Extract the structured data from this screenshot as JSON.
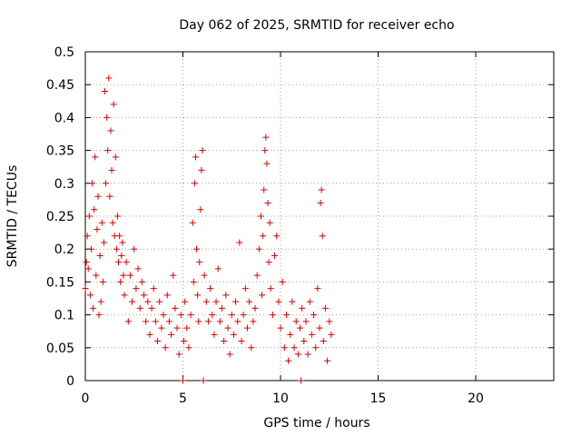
{
  "chart_data": {
    "type": "scatter",
    "title": "Day 062 of 2025, SRMTID for receiver echo",
    "xlabel": "GPS time / hours",
    "ylabel": "SRMTID / TECUs",
    "xlim": [
      0,
      24
    ],
    "ylim": [
      0,
      0.5
    ],
    "xticks": [
      0,
      5,
      10,
      15,
      20
    ],
    "xtick_labels": [
      "0",
      "5",
      "10",
      "15",
      "20"
    ],
    "yticks": [
      0,
      0.05,
      0.1,
      0.15,
      0.2,
      0.25,
      0.3,
      0.35,
      0.4,
      0.45,
      0.5
    ],
    "ytick_labels": [
      "0",
      "0.05",
      "0.1",
      "0.15",
      "0.2",
      "0.25",
      "0.3",
      "0.35",
      "0.4",
      "0.45",
      "0.5"
    ],
    "grid": true,
    "marker": "+",
    "colors": {
      "marker": "#dd0000",
      "grid": "#a0a0a0",
      "axis": "#000000"
    },
    "series": [
      {
        "name": "SRMTID",
        "points": [
          [
            0.0,
            0.14
          ],
          [
            0.05,
            0.18
          ],
          [
            0.1,
            0.22
          ],
          [
            0.15,
            0.17
          ],
          [
            0.2,
            0.25
          ],
          [
            0.25,
            0.13
          ],
          [
            0.3,
            0.2
          ],
          [
            0.35,
            0.3
          ],
          [
            0.4,
            0.11
          ],
          [
            0.45,
            0.26
          ],
          [
            0.5,
            0.34
          ],
          [
            0.55,
            0.16
          ],
          [
            0.6,
            0.23
          ],
          [
            0.65,
            0.28
          ],
          [
            0.7,
            0.1
          ],
          [
            0.75,
            0.19
          ],
          [
            0.8,
            0.12
          ],
          [
            0.85,
            0.24
          ],
          [
            0.9,
            0.15
          ],
          [
            0.95,
            0.21
          ],
          [
            1.0,
            0.44
          ],
          [
            1.05,
            0.3
          ],
          [
            1.1,
            0.4
          ],
          [
            1.15,
            0.35
          ],
          [
            1.2,
            0.46
          ],
          [
            1.25,
            0.28
          ],
          [
            1.3,
            0.38
          ],
          [
            1.35,
            0.32
          ],
          [
            1.4,
            0.24
          ],
          [
            1.45,
            0.42
          ],
          [
            1.5,
            0.22
          ],
          [
            1.55,
            0.34
          ],
          [
            1.6,
            0.2
          ],
          [
            1.65,
            0.25
          ],
          [
            1.7,
            0.18
          ],
          [
            1.75,
            0.22
          ],
          [
            1.8,
            0.15
          ],
          [
            1.85,
            0.19
          ],
          [
            1.9,
            0.21
          ],
          [
            1.95,
            0.16
          ],
          [
            2.0,
            0.13
          ],
          [
            2.1,
            0.18
          ],
          [
            2.2,
            0.09
          ],
          [
            2.3,
            0.16
          ],
          [
            2.4,
            0.12
          ],
          [
            2.5,
            0.2
          ],
          [
            2.6,
            0.14
          ],
          [
            2.7,
            0.17
          ],
          [
            2.8,
            0.11
          ],
          [
            2.9,
            0.15
          ],
          [
            3.0,
            0.13
          ],
          [
            3.1,
            0.09
          ],
          [
            3.2,
            0.12
          ],
          [
            3.3,
            0.07
          ],
          [
            3.4,
            0.11
          ],
          [
            3.5,
            0.14
          ],
          [
            3.6,
            0.09
          ],
          [
            3.7,
            0.06
          ],
          [
            3.8,
            0.12
          ],
          [
            3.9,
            0.08
          ],
          [
            4.0,
            0.1
          ],
          [
            4.1,
            0.05
          ],
          [
            4.2,
            0.13
          ],
          [
            4.3,
            0.09
          ],
          [
            4.4,
            0.07
          ],
          [
            4.5,
            0.16
          ],
          [
            4.6,
            0.11
          ],
          [
            4.7,
            0.08
          ],
          [
            4.8,
            0.04
          ],
          [
            4.9,
            0.1
          ],
          [
            5.0,
            0.0
          ],
          [
            5.05,
            0.06
          ],
          [
            5.1,
            0.12
          ],
          [
            5.2,
            0.08
          ],
          [
            5.3,
            0.05
          ],
          [
            5.4,
            0.1
          ],
          [
            5.5,
            0.24
          ],
          [
            5.55,
            0.15
          ],
          [
            5.6,
            0.3
          ],
          [
            5.65,
            0.34
          ],
          [
            5.7,
            0.2
          ],
          [
            5.75,
            0.13
          ],
          [
            5.8,
            0.09
          ],
          [
            5.85,
            0.18
          ],
          [
            5.9,
            0.26
          ],
          [
            5.95,
            0.32
          ],
          [
            6.0,
            0.35
          ],
          [
            6.05,
            0.0
          ],
          [
            6.1,
            0.16
          ],
          [
            6.2,
            0.12
          ],
          [
            6.3,
            0.09
          ],
          [
            6.4,
            0.14
          ],
          [
            6.5,
            0.1
          ],
          [
            6.6,
            0.07
          ],
          [
            6.7,
            0.12
          ],
          [
            6.8,
            0.17
          ],
          [
            6.9,
            0.09
          ],
          [
            7.0,
            0.11
          ],
          [
            7.1,
            0.06
          ],
          [
            7.2,
            0.13
          ],
          [
            7.3,
            0.08
          ],
          [
            7.4,
            0.04
          ],
          [
            7.5,
            0.1
          ],
          [
            7.6,
            0.07
          ],
          [
            7.7,
            0.12
          ],
          [
            7.8,
            0.09
          ],
          [
            7.9,
            0.21
          ],
          [
            8.0,
            0.06
          ],
          [
            8.1,
            0.1
          ],
          [
            8.2,
            0.14
          ],
          [
            8.3,
            0.08
          ],
          [
            8.4,
            0.12
          ],
          [
            8.5,
            0.05
          ],
          [
            8.6,
            0.09
          ],
          [
            8.7,
            0.11
          ],
          [
            8.8,
            0.16
          ],
          [
            8.9,
            0.2
          ],
          [
            9.0,
            0.25
          ],
          [
            9.05,
            0.13
          ],
          [
            9.1,
            0.22
          ],
          [
            9.15,
            0.29
          ],
          [
            9.2,
            0.35
          ],
          [
            9.25,
            0.37
          ],
          [
            9.3,
            0.33
          ],
          [
            9.35,
            0.27
          ],
          [
            9.4,
            0.18
          ],
          [
            9.45,
            0.24
          ],
          [
            9.5,
            0.14
          ],
          [
            9.6,
            0.1
          ],
          [
            9.7,
            0.19
          ],
          [
            9.8,
            0.22
          ],
          [
            9.9,
            0.12
          ],
          [
            10.0,
            0.08
          ],
          [
            10.1,
            0.15
          ],
          [
            10.2,
            0.05
          ],
          [
            10.3,
            0.1
          ],
          [
            10.4,
            0.03
          ],
          [
            10.5,
            0.07
          ],
          [
            10.6,
            0.12
          ],
          [
            10.7,
            0.05
          ],
          [
            10.8,
            0.09
          ],
          [
            10.9,
            0.04
          ],
          [
            11.0,
            0.08
          ],
          [
            11.05,
            0.0
          ],
          [
            11.1,
            0.11
          ],
          [
            11.2,
            0.06
          ],
          [
            11.3,
            0.09
          ],
          [
            11.4,
            0.04
          ],
          [
            11.5,
            0.12
          ],
          [
            11.6,
            0.07
          ],
          [
            11.7,
            0.1
          ],
          [
            11.8,
            0.05
          ],
          [
            11.9,
            0.14
          ],
          [
            12.0,
            0.08
          ],
          [
            12.05,
            0.27
          ],
          [
            12.1,
            0.29
          ],
          [
            12.15,
            0.22
          ],
          [
            12.2,
            0.06
          ],
          [
            12.3,
            0.11
          ],
          [
            12.4,
            0.03
          ],
          [
            12.5,
            0.09
          ],
          [
            12.6,
            0.07
          ]
        ]
      }
    ]
  }
}
